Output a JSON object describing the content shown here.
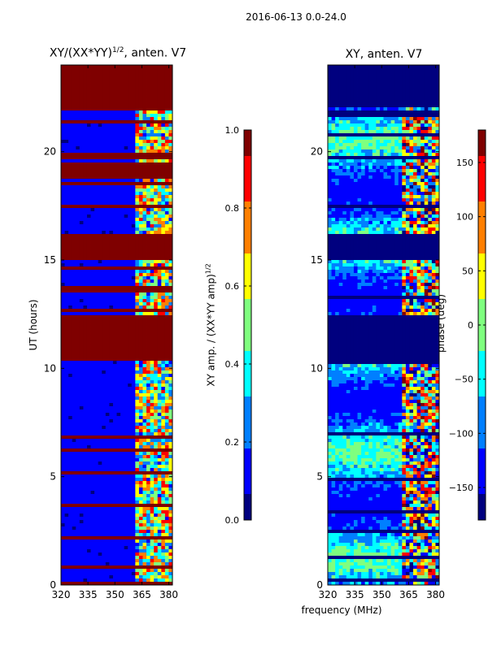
{
  "suptitle": "2016-06-13 0.0-24.0",
  "colormap": [
    "#00007f",
    "#0000ff",
    "#007fff",
    "#00ffff",
    "#7fff7f",
    "#ffff00",
    "#ff7f00",
    "#ff0000",
    "#7f0000"
  ],
  "chart_data": [
    {
      "type": "heatmap",
      "title": "XY/(XX*YY)",
      "title_sup": "1/2",
      "title_suffix": ", anten. V7",
      "xlabel": "",
      "ylabel": "UT (hours)",
      "xlim": [
        320,
        382
      ],
      "ylim": [
        0,
        24
      ],
      "xticks": [
        320,
        335,
        350,
        365,
        380
      ],
      "yticks": [
        0,
        5,
        10,
        15,
        20
      ],
      "colorbar": {
        "label": "XY amp. / (XX*YY amp)",
        "label_sup": "1/2",
        "range": [
          0.0,
          1.0
        ],
        "ticks": [
          "0.0",
          "0.2",
          "0.4",
          "0.6",
          "0.8",
          "1.0"
        ],
        "tick_values": [
          0.0,
          0.2,
          0.4,
          0.6,
          0.8,
          1.0
        ]
      },
      "saturated_bands_hours": [
        [
          0,
          0.12
        ],
        [
          10.3,
          12.5
        ],
        [
          15.05,
          16.2
        ],
        [
          18.8,
          19.5
        ],
        [
          19.6,
          20.0
        ],
        [
          21.3,
          21.5
        ],
        [
          22.0,
          24.0
        ]
      ]
    },
    {
      "type": "heatmap",
      "title": "XY, anten. V7",
      "xlabel": "frequency (MHz)",
      "ylabel": "",
      "xlim": [
        320,
        382
      ],
      "ylim": [
        0,
        24
      ],
      "xticks": [
        320,
        335,
        350,
        365,
        380
      ],
      "yticks": [
        0,
        5,
        10,
        15,
        20
      ],
      "colorbar": {
        "label": "phase (deg)",
        "range": [
          -180,
          180
        ],
        "ticks": [
          "150",
          "100",
          "50",
          "0",
          "−50",
          "−100",
          "−150"
        ],
        "tick_values": [
          150,
          100,
          50,
          0,
          -50,
          -100,
          -150
        ]
      },
      "blank_bands_hours": [
        [
          10.3,
          12.5
        ],
        [
          15.05,
          16.2
        ],
        [
          22.0,
          24.0
        ]
      ]
    }
  ]
}
